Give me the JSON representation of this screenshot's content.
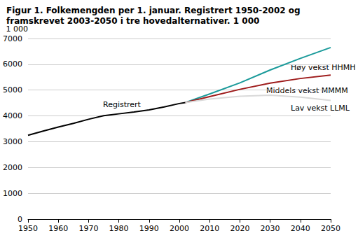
{
  "chart_data": {
    "type": "line",
    "title": "Figur 1. Folkemengden per 1. januar. Registrert 1950-2002 og framskrevet 2003-2050 i tre hovedalternativer. 1 000",
    "y_label": "1 000",
    "xlim": [
      1950,
      2050
    ],
    "xticks": [
      1950,
      1960,
      1970,
      1980,
      1990,
      2000,
      2010,
      2020,
      2030,
      2040,
      2050
    ],
    "ylim": [
      0,
      7000
    ],
    "yticks": [
      0,
      1000,
      2000,
      3000,
      4000,
      5000,
      6000,
      7000
    ],
    "grid": true,
    "series": [
      {
        "name": "Registrert",
        "color": "#000000",
        "x": [
          1950,
          1955,
          1960,
          1965,
          1970,
          1975,
          1980,
          1985,
          1990,
          1995,
          2000,
          2002
        ],
        "values": [
          3250,
          3410,
          3570,
          3710,
          3870,
          4010,
          4080,
          4150,
          4230,
          4350,
          4480,
          4520
        ]
      },
      {
        "name": "Høy vekst HHMH",
        "color": "#1a9a9a",
        "x": [
          2002,
          2010,
          2020,
          2030,
          2040,
          2050
        ],
        "values": [
          4520,
          4850,
          5280,
          5780,
          6230,
          6650
        ]
      },
      {
        "name": "Middels vekst MMMM",
        "color": "#9e1b1b",
        "x": [
          2002,
          2010,
          2020,
          2030,
          2040,
          2050
        ],
        "values": [
          4520,
          4750,
          5030,
          5270,
          5450,
          5580
        ]
      },
      {
        "name": "Lav vekst LLML",
        "color": "#d9d9d9",
        "x": [
          2002,
          2010,
          2020,
          2030,
          2040,
          2050
        ],
        "values": [
          4520,
          4650,
          4760,
          4800,
          4730,
          4600
        ]
      }
    ]
  }
}
